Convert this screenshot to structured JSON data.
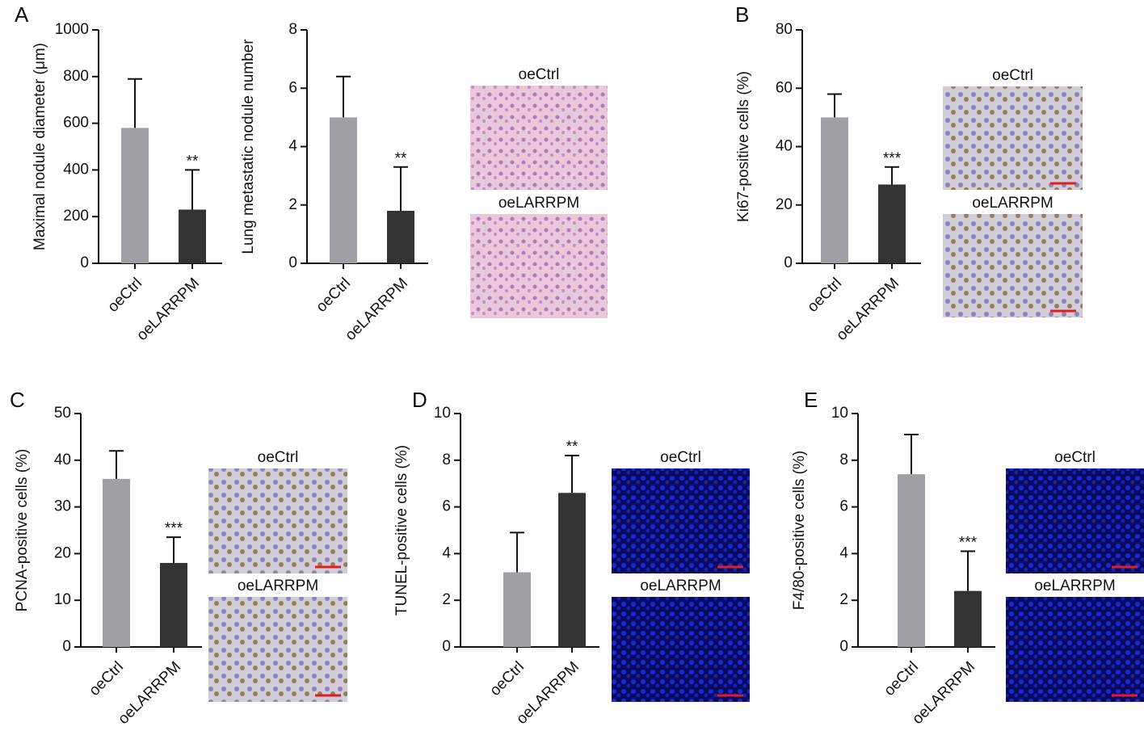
{
  "chart_data": [
    {
      "type": "bar",
      "panel": "A",
      "ylabel": "Maximal nodule diameter (μm)",
      "categories": [
        "oeCtrl",
        "oeLARRPM"
      ],
      "values": [
        580,
        230
      ],
      "errors": [
        210,
        170
      ],
      "significance": [
        null,
        "**"
      ],
      "colors": [
        "#a0a0a4",
        "#333333"
      ],
      "ylim": [
        0,
        1000
      ],
      "yticks": [
        0,
        200,
        400,
        600,
        800,
        1000
      ]
    },
    {
      "type": "bar",
      "ylabel": "Lung metastatic nodule number",
      "categories": [
        "oeCtrl",
        "oeLARRPM"
      ],
      "values": [
        5.0,
        1.8
      ],
      "errors": [
        1.4,
        1.5
      ],
      "significance": [
        null,
        "**"
      ],
      "colors": [
        "#a0a0a4",
        "#333333"
      ],
      "ylim": [
        0,
        8
      ],
      "yticks": [
        0,
        2,
        4,
        6,
        8
      ],
      "images": [
        "oeCtrl",
        "oeLARRPM"
      ]
    },
    {
      "type": "bar",
      "panel": "B",
      "ylabel": "Ki67-positive cells (%)",
      "categories": [
        "oeCtrl",
        "oeLARRPM"
      ],
      "values": [
        50,
        27
      ],
      "errors": [
        8,
        6
      ],
      "significance": [
        null,
        "***"
      ],
      "colors": [
        "#a0a0a4",
        "#333333"
      ],
      "ylim": [
        0,
        80
      ],
      "yticks": [
        0,
        20,
        40,
        60,
        80
      ],
      "images": [
        "oeCtrl",
        "oeLARRPM"
      ]
    },
    {
      "type": "bar",
      "panel": "C",
      "ylabel": "PCNA-positive cells (%)",
      "categories": [
        "oeCtrl",
        "oeLARRPM"
      ],
      "values": [
        36,
        18
      ],
      "errors": [
        6,
        5.5
      ],
      "significance": [
        null,
        "***"
      ],
      "colors": [
        "#a0a0a4",
        "#333333"
      ],
      "ylim": [
        0,
        50
      ],
      "yticks": [
        0,
        10,
        20,
        30,
        40,
        50
      ],
      "images": [
        "oeCtrl",
        "oeLARRPM"
      ]
    },
    {
      "type": "bar",
      "panel": "D",
      "ylabel": "TUNEL-positive cells (%)",
      "categories": [
        "oeCtrl",
        "oeLARRPM"
      ],
      "values": [
        3.2,
        6.6
      ],
      "errors": [
        1.7,
        1.6
      ],
      "significance": [
        null,
        "**"
      ],
      "colors": [
        "#a0a0a4",
        "#333333"
      ],
      "ylim": [
        0,
        10
      ],
      "yticks": [
        0,
        2,
        4,
        6,
        8,
        10
      ],
      "images": [
        "oeCtrl",
        "oeLARRPM"
      ]
    },
    {
      "type": "bar",
      "panel": "E",
      "ylabel": "F4/80-positive cells (%)",
      "categories": [
        "oeCtrl",
        "oeLARRPM"
      ],
      "values": [
        7.4,
        2.4
      ],
      "errors": [
        1.7,
        1.7
      ],
      "significance": [
        null,
        "***"
      ],
      "colors": [
        "#a0a0a4",
        "#333333"
      ],
      "ylim": [
        0,
        10
      ],
      "yticks": [
        0,
        2,
        4,
        6,
        8,
        10
      ],
      "images": [
        "oeCtrl",
        "oeLARRPM"
      ]
    }
  ]
}
